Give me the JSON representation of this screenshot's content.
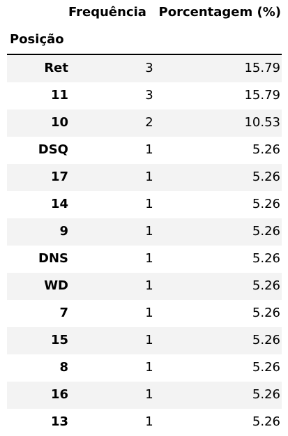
{
  "chart_data": {
    "type": "table",
    "index_label": "Posição",
    "columns": [
      "Frequência",
      "Porcentagem (%)"
    ],
    "rows": [
      {
        "posicao": "Ret",
        "frequencia": "3",
        "porcentagem": "15.79"
      },
      {
        "posicao": "11",
        "frequencia": "3",
        "porcentagem": "15.79"
      },
      {
        "posicao": "10",
        "frequencia": "2",
        "porcentagem": "10.53"
      },
      {
        "posicao": "DSQ",
        "frequencia": "1",
        "porcentagem": "5.26"
      },
      {
        "posicao": "17",
        "frequencia": "1",
        "porcentagem": "5.26"
      },
      {
        "posicao": "14",
        "frequencia": "1",
        "porcentagem": "5.26"
      },
      {
        "posicao": "9",
        "frequencia": "1",
        "porcentagem": "5.26"
      },
      {
        "posicao": "DNS",
        "frequencia": "1",
        "porcentagem": "5.26"
      },
      {
        "posicao": "WD",
        "frequencia": "1",
        "porcentagem": "5.26"
      },
      {
        "posicao": "7",
        "frequencia": "1",
        "porcentagem": "5.26"
      },
      {
        "posicao": "15",
        "frequencia": "1",
        "porcentagem": "5.26"
      },
      {
        "posicao": "8",
        "frequencia": "1",
        "porcentagem": "5.26"
      },
      {
        "posicao": "16",
        "frequencia": "1",
        "porcentagem": "5.26"
      },
      {
        "posicao": "13",
        "frequencia": "1",
        "porcentagem": "5.26"
      }
    ]
  }
}
